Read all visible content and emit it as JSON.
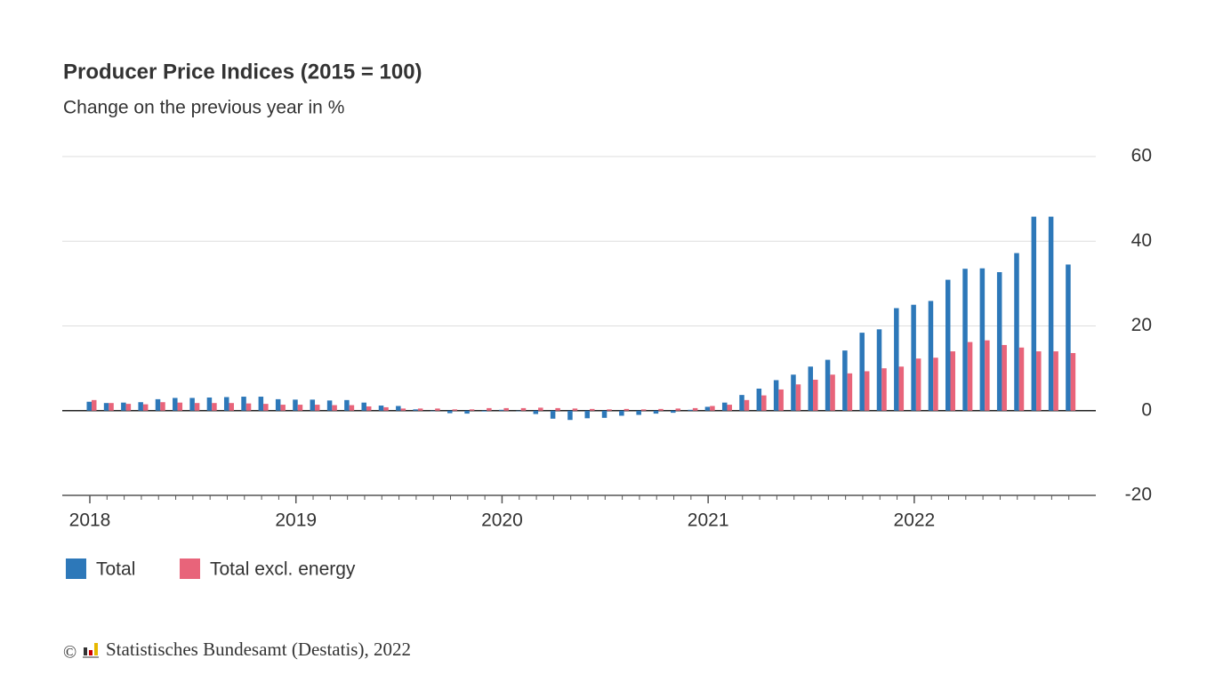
{
  "chart_data": {
    "type": "bar",
    "title": "Producer Price Indices (2015 = 100)",
    "subtitle": "Change on the previous year in %",
    "categories": [
      "2018",
      null,
      null,
      null,
      null,
      null,
      null,
      null,
      null,
      null,
      null,
      null,
      "2019",
      null,
      null,
      null,
      null,
      null,
      null,
      null,
      null,
      null,
      null,
      null,
      "2020",
      null,
      null,
      null,
      null,
      null,
      null,
      null,
      null,
      null,
      null,
      null,
      "2021",
      null,
      null,
      null,
      null,
      null,
      null,
      null,
      null,
      null,
      null,
      null,
      "2022",
      null,
      null,
      null,
      null,
      null,
      null,
      null,
      null,
      null
    ],
    "series": [
      {
        "name": "Total",
        "color": "#2d78b9",
        "values": [
          2.1,
          1.8,
          1.9,
          2.0,
          2.7,
          3.0,
          3.0,
          3.1,
          3.2,
          3.3,
          3.3,
          2.7,
          2.6,
          2.6,
          2.4,
          2.5,
          1.9,
          1.2,
          1.1,
          0.3,
          -0.1,
          -0.6,
          -0.7,
          -0.2,
          0.2,
          -0.1,
          -0.8,
          -1.9,
          -2.2,
          -1.8,
          -1.7,
          -1.2,
          -1.0,
          -0.7,
          -0.5,
          0.2,
          0.9,
          1.9,
          3.7,
          5.2,
          7.2,
          8.5,
          10.4,
          12.0,
          14.2,
          18.4,
          19.2,
          24.2,
          25.0,
          25.9,
          30.9,
          33.5,
          33.6,
          32.7,
          37.2,
          45.8,
          45.8,
          34.5
        ]
      },
      {
        "name": "Total excl. energy",
        "color": "#e8647a",
        "values": [
          2.5,
          1.8,
          1.6,
          1.5,
          2.0,
          1.9,
          1.8,
          1.8,
          1.8,
          1.7,
          1.6,
          1.4,
          1.4,
          1.4,
          1.3,
          1.3,
          1.0,
          0.8,
          0.5,
          0.5,
          0.5,
          0.3,
          0.3,
          0.6,
          0.6,
          0.6,
          0.7,
          0.6,
          0.5,
          0.4,
          0.3,
          0.4,
          0.3,
          0.4,
          0.5,
          0.6,
          1.1,
          1.4,
          2.5,
          3.6,
          5.0,
          6.2,
          7.3,
          8.5,
          8.8,
          9.3,
          10.0,
          10.4,
          12.3,
          12.5,
          14.0,
          16.2,
          16.6,
          15.5,
          14.9,
          14.0,
          14.0,
          13.6
        ]
      }
    ],
    "ylim": [
      -20,
      60
    ],
    "yticks": [
      -20,
      0,
      20,
      40,
      60
    ],
    "grid": true,
    "legend": "bottom-left",
    "source": "Statistisches Bundesamt (Destatis), 2022"
  }
}
